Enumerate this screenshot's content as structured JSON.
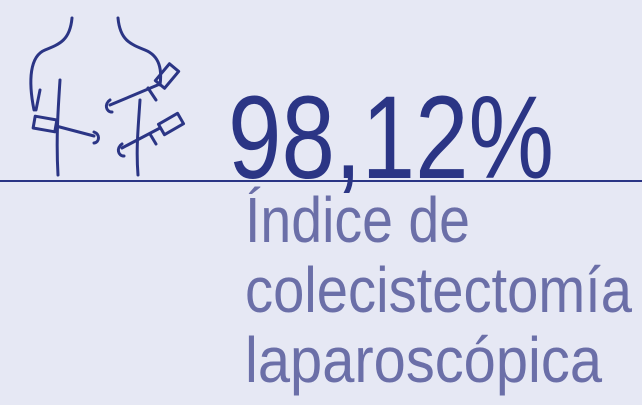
{
  "stat": {
    "value": "98,12%",
    "label_lines": [
      "Índice de",
      "colecistectomía",
      "laparoscópica"
    ]
  }
}
